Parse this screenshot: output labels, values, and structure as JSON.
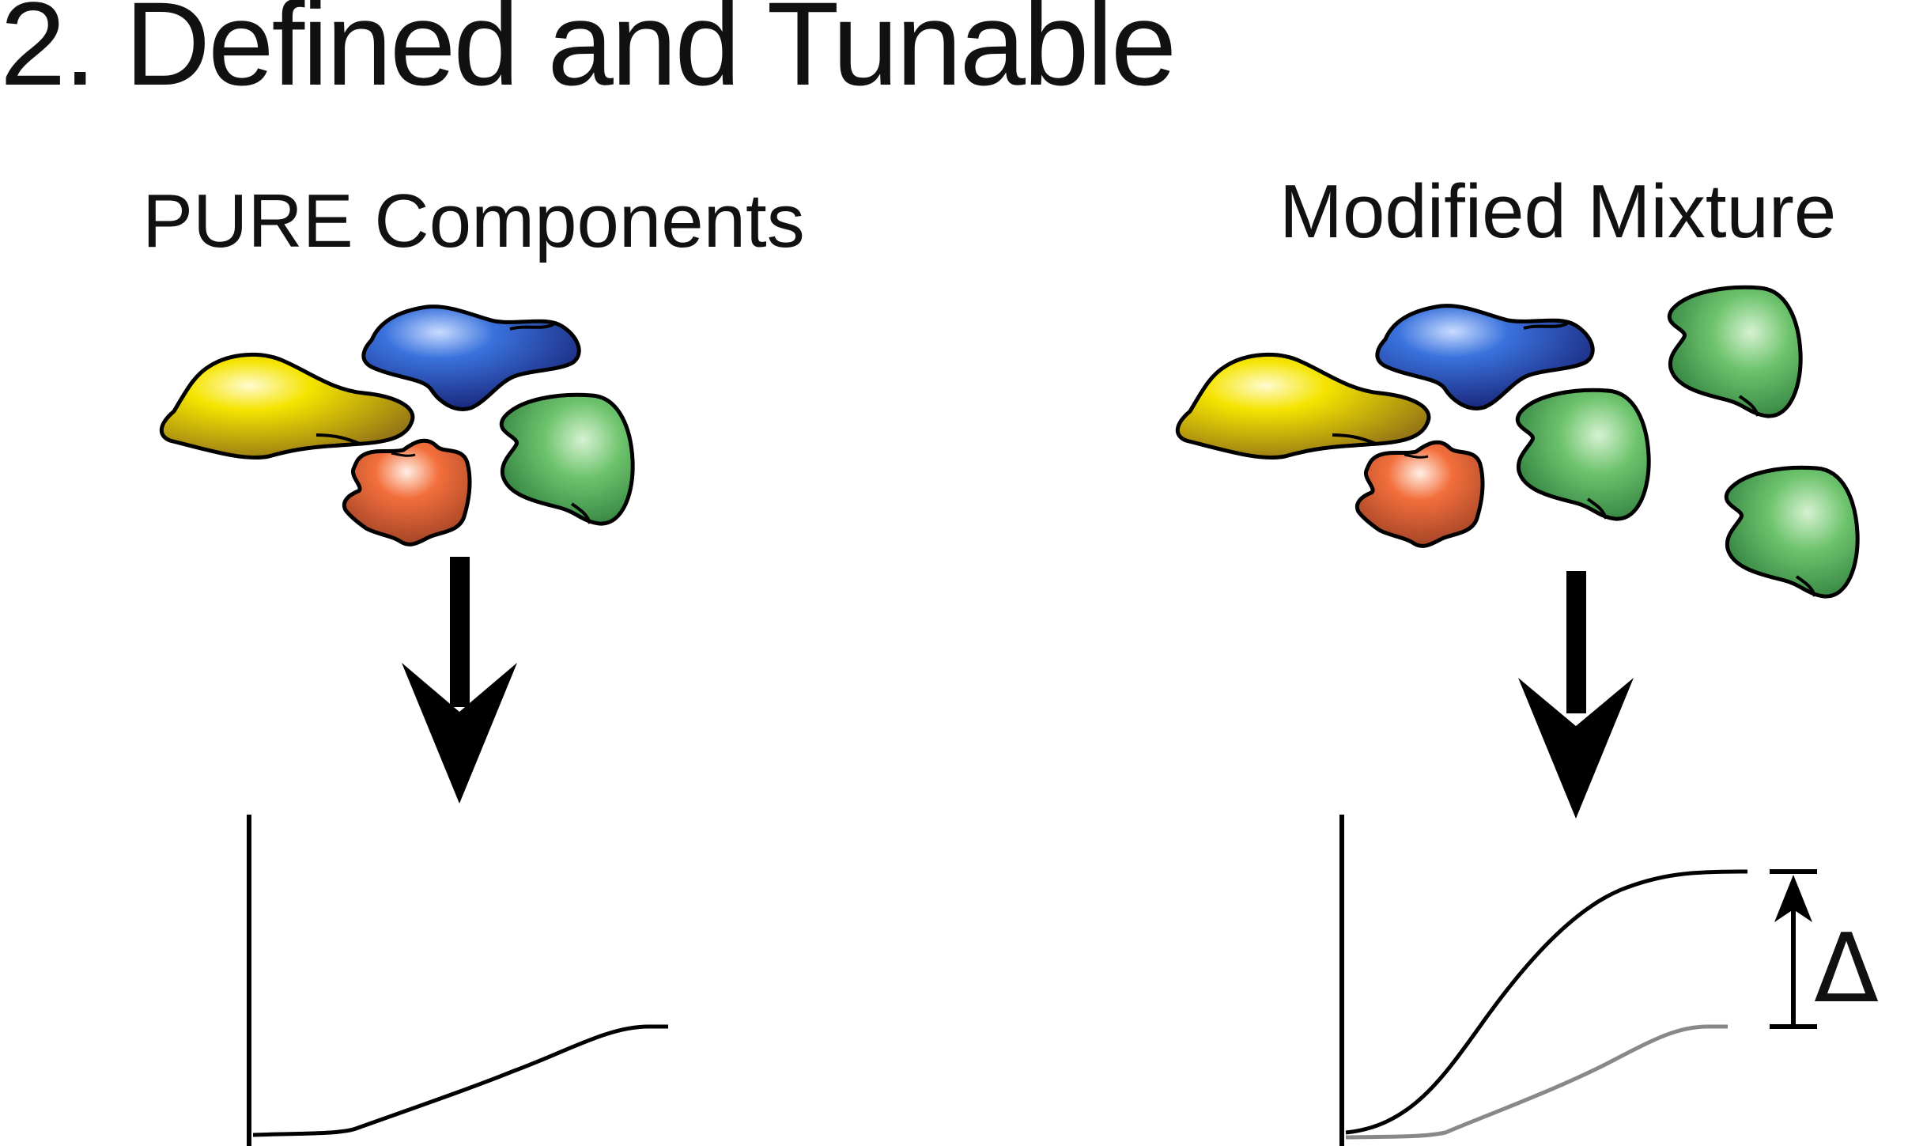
{
  "title": "2. Defined and Tunable",
  "panels": {
    "left": {
      "label": "PURE Components"
    },
    "right": {
      "label": "Modified Mixture"
    }
  },
  "delta_symbol": "Δ",
  "colors": {
    "yellow": "#f2e200",
    "blue": "#2a5fd0",
    "green": "#59b85c",
    "orange": "#f06a3a",
    "curve_grey": "#888888",
    "ink": "#000000"
  },
  "icons": [
    "protein-blob-icon",
    "down-arrow-icon",
    "up-arrow-icon"
  ]
}
